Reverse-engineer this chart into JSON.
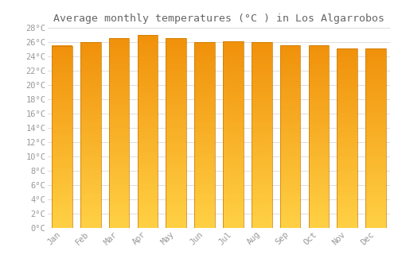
{
  "title": "Average monthly temperatures (°C ) in Los Algarrobos",
  "months": [
    "Jan",
    "Feb",
    "Mar",
    "Apr",
    "May",
    "Jun",
    "Jul",
    "Aug",
    "Sep",
    "Oct",
    "Nov",
    "Dec"
  ],
  "temperatures": [
    25.5,
    26.0,
    26.6,
    27.0,
    26.6,
    26.0,
    26.1,
    26.0,
    25.6,
    25.6,
    25.1,
    25.1
  ],
  "ylim": [
    0,
    28
  ],
  "yticks": [
    0,
    2,
    4,
    6,
    8,
    10,
    12,
    14,
    16,
    18,
    20,
    22,
    24,
    26,
    28
  ],
  "bar_color_bottom": "#FFD044",
  "bar_color_top": "#F0900A",
  "bar_edge_color": "#C87800",
  "background_color": "#ffffff",
  "grid_color": "#dddddd",
  "title_fontsize": 9.5,
  "tick_fontsize": 7.5,
  "title_color": "#666666",
  "tick_color": "#999999",
  "bar_width": 0.72
}
